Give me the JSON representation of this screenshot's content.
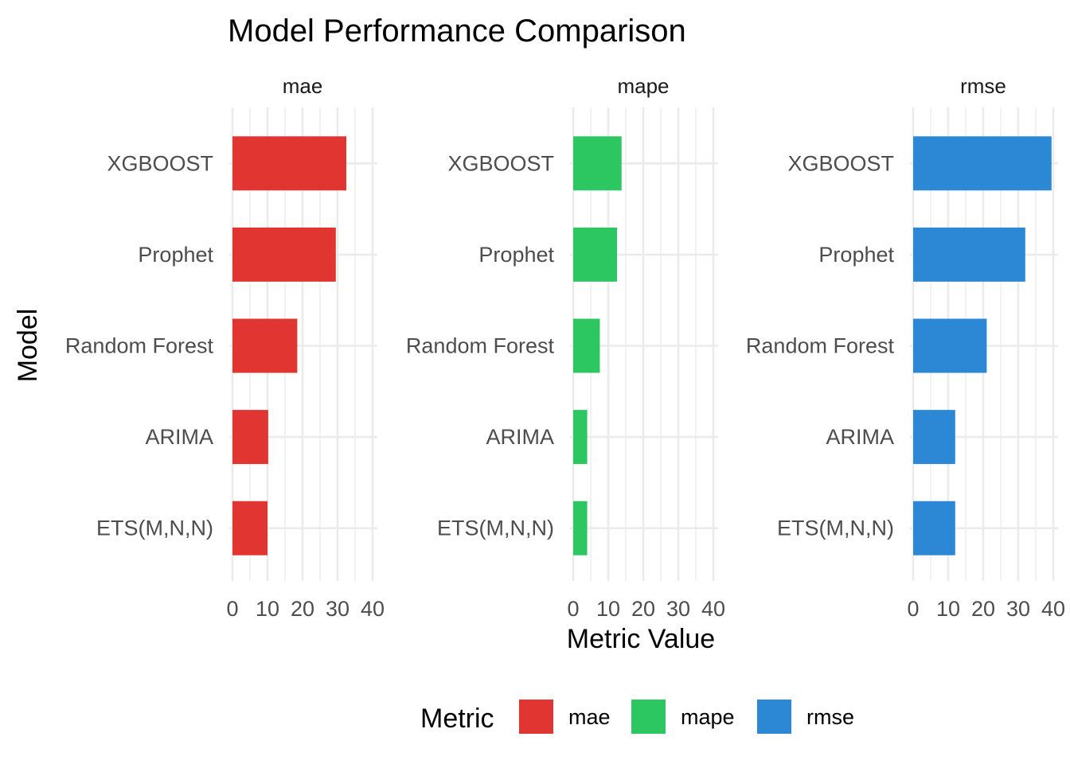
{
  "chart_data": {
    "type": "bar",
    "orientation": "horizontal",
    "title": "Model Performance Comparison",
    "xlabel": "Metric Value",
    "ylabel": "Model",
    "categories": [
      "XGBOOST",
      "Prophet",
      "Random Forest",
      "ARIMA",
      "ETS(M,N,N)"
    ],
    "xlim": [
      0,
      40
    ],
    "x_ticks": [
      "0",
      "10",
      "20",
      "30",
      "40"
    ],
    "grid": true,
    "legend": {
      "title": "Metric",
      "placement": "bottom"
    },
    "facets": [
      {
        "name": "mae",
        "color": "#E03531",
        "values": [
          32.5,
          29.5,
          18.5,
          10.2,
          10.0
        ]
      },
      {
        "name": "mape",
        "color": "#2DC762",
        "values": [
          13.8,
          12.5,
          7.6,
          4.0,
          4.0
        ]
      },
      {
        "name": "rmse",
        "color": "#2C87D4",
        "values": [
          39.5,
          32.0,
          21.0,
          12.0,
          12.0
        ]
      }
    ]
  }
}
